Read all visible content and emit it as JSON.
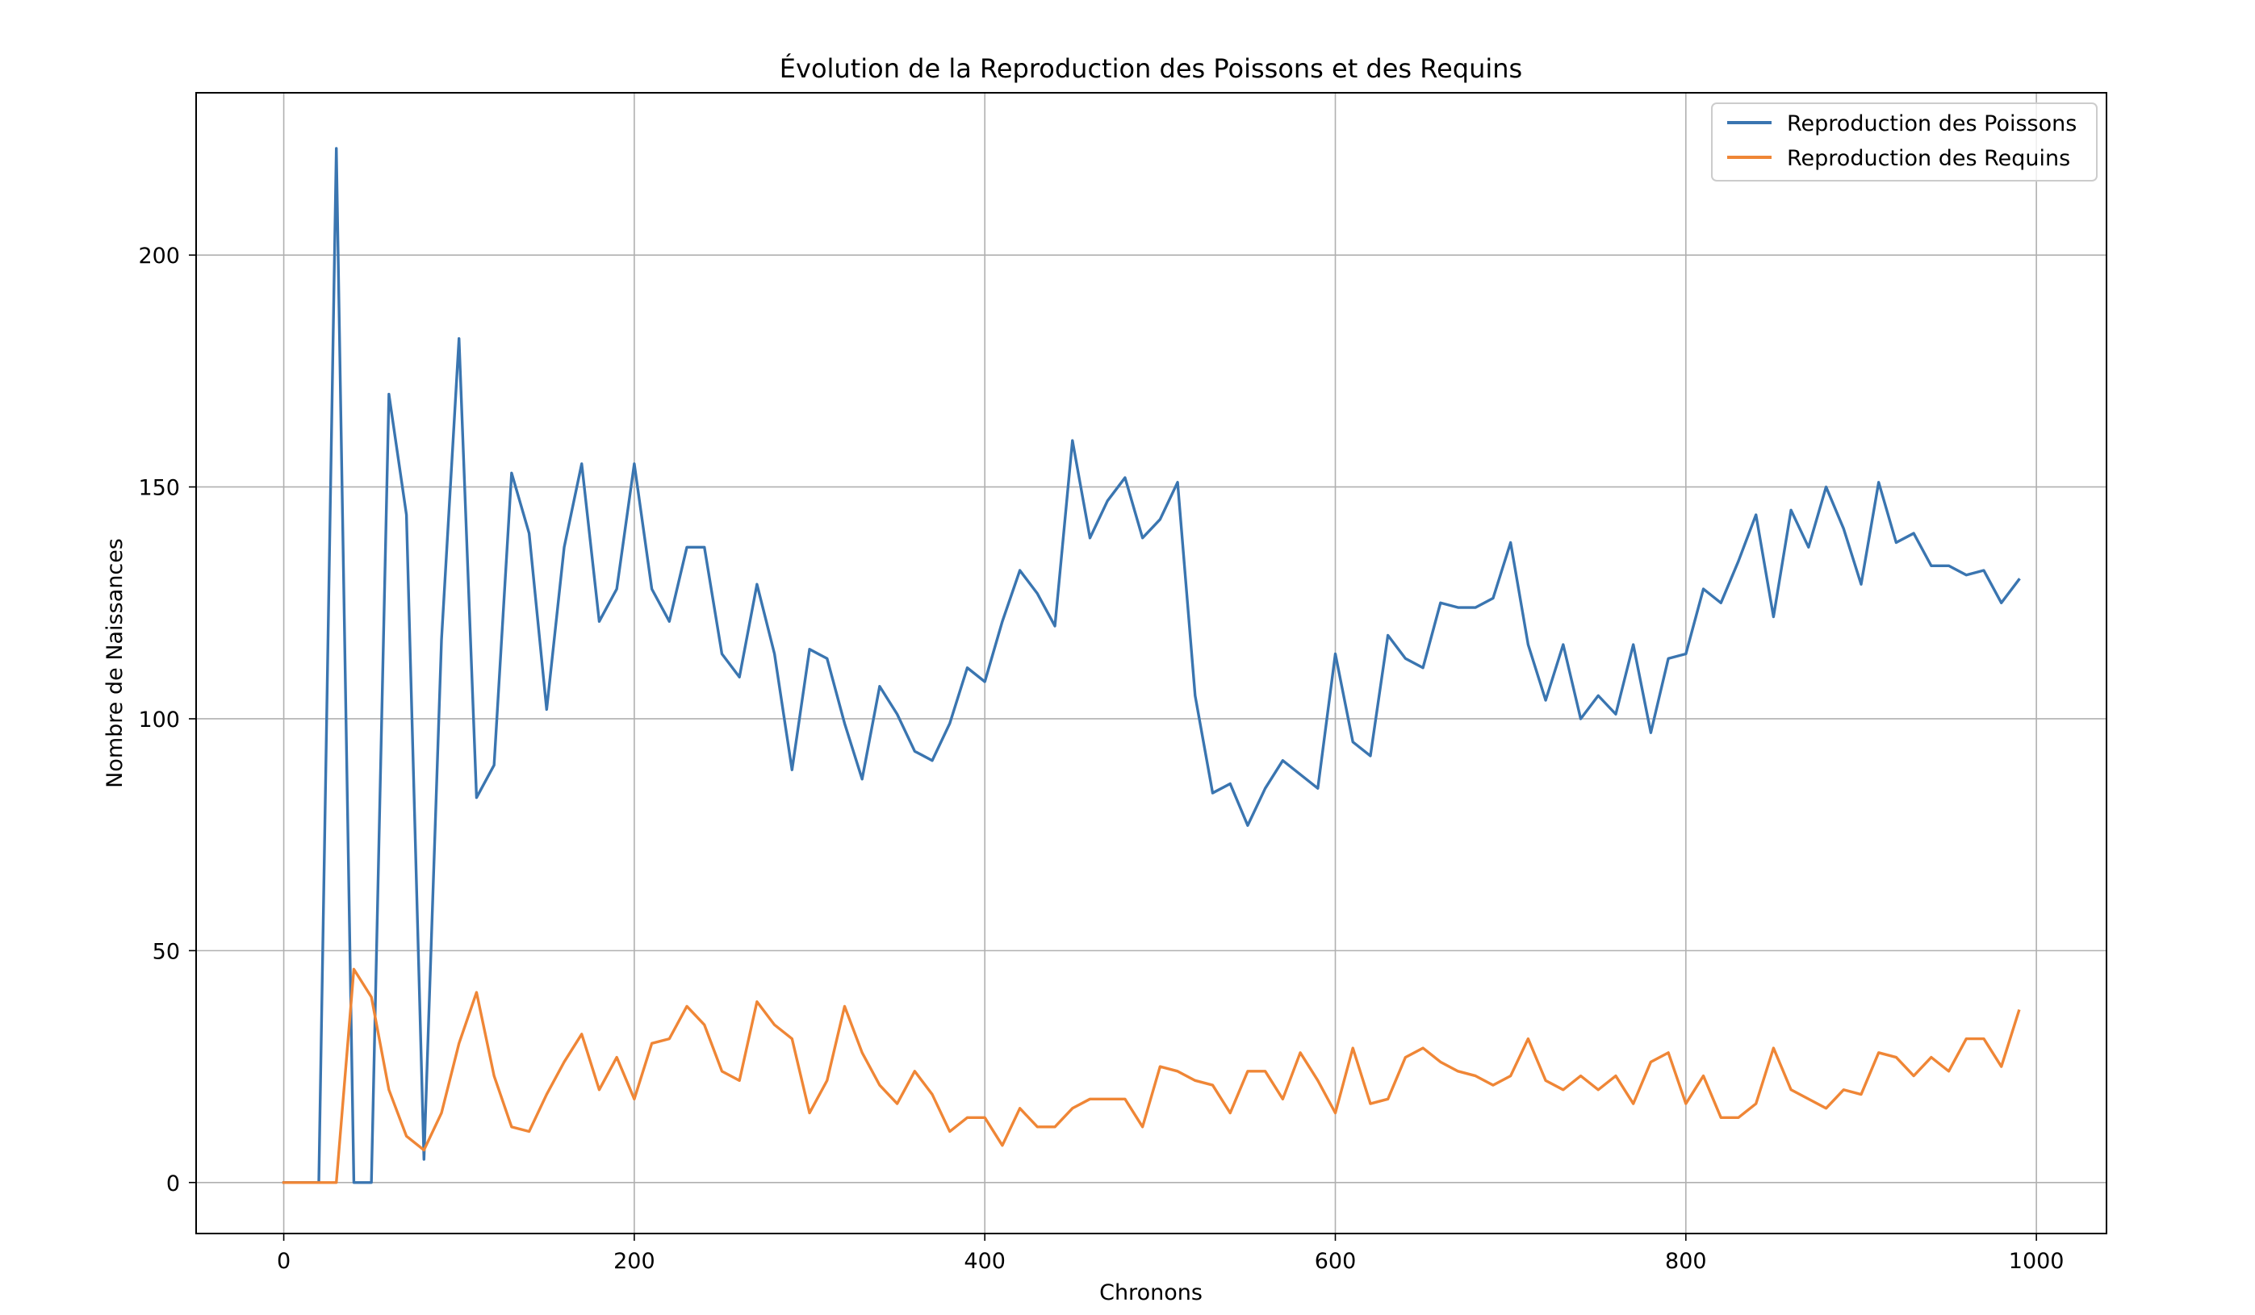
{
  "chart_data": {
    "type": "line",
    "title": "Évolution de la Reproduction des Poissons et des Requins",
    "xlabel": "Chronons",
    "ylabel": "Nombre de Naissances",
    "xlim": [
      -50,
      1040
    ],
    "ylim": [
      -11,
      235
    ],
    "xticks": [
      0,
      200,
      400,
      600,
      800,
      1000
    ],
    "xtick_labels": [
      "0",
      "200",
      "400",
      "600",
      "800",
      "1000"
    ],
    "yticks": [
      0,
      50,
      100,
      150,
      200
    ],
    "ytick_labels": [
      "0",
      "50",
      "100",
      "150",
      "200"
    ],
    "grid": true,
    "legend_position": "top-right",
    "x": [
      0,
      10,
      20,
      30,
      40,
      50,
      60,
      70,
      80,
      90,
      100,
      110,
      120,
      130,
      140,
      150,
      160,
      170,
      180,
      190,
      200,
      210,
      220,
      230,
      240,
      250,
      260,
      270,
      280,
      290,
      300,
      310,
      320,
      330,
      340,
      350,
      360,
      370,
      380,
      390,
      400,
      410,
      420,
      430,
      440,
      450,
      460,
      470,
      480,
      490,
      500,
      510,
      520,
      530,
      540,
      550,
      560,
      570,
      580,
      590,
      600,
      610,
      620,
      630,
      640,
      650,
      660,
      670,
      680,
      690,
      700,
      710,
      720,
      730,
      740,
      750,
      760,
      770,
      780,
      790,
      800,
      810,
      820,
      830,
      840,
      850,
      860,
      870,
      880,
      890,
      900,
      910,
      920,
      930,
      940,
      950,
      960,
      970,
      980,
      990
    ],
    "series": [
      {
        "name": "Reproduction des Poissons",
        "color": "#3a75b0",
        "values": [
          0,
          0,
          0,
          223,
          0,
          0,
          170,
          144,
          5,
          117,
          182,
          83,
          90,
          153,
          140,
          102,
          137,
          155,
          121,
          128,
          155,
          128,
          121,
          137,
          137,
          114,
          109,
          129,
          114,
          89,
          115,
          113,
          99,
          87,
          107,
          101,
          93,
          91,
          99,
          111,
          108,
          121,
          132,
          127,
          120,
          160,
          139,
          147,
          152,
          139,
          143,
          151,
          105,
          84,
          86,
          77,
          85,
          91,
          88,
          85,
          114,
          95,
          92,
          118,
          113,
          111,
          125,
          124,
          124,
          126,
          138,
          116,
          104,
          116,
          100,
          105,
          101,
          116,
          97,
          113,
          114,
          128,
          125,
          134,
          144,
          122,
          145,
          137,
          150,
          141,
          129,
          151,
          138,
          140,
          133,
          133,
          131,
          132,
          125,
          130
        ]
      },
      {
        "name": "Reproduction des Requins",
        "color": "#ef8636",
        "values": [
          0,
          0,
          0,
          0,
          46,
          40,
          20,
          10,
          7,
          15,
          30,
          41,
          23,
          12,
          11,
          19,
          26,
          32,
          20,
          27,
          18,
          30,
          31,
          38,
          34,
          24,
          22,
          39,
          34,
          31,
          15,
          22,
          38,
          28,
          21,
          17,
          24,
          19,
          11,
          14,
          14,
          8,
          16,
          12,
          12,
          16,
          18,
          18,
          18,
          12,
          25,
          24,
          22,
          21,
          15,
          24,
          24,
          18,
          28,
          22,
          15,
          29,
          17,
          18,
          27,
          29,
          26,
          24,
          23,
          21,
          23,
          31,
          22,
          20,
          23,
          20,
          23,
          17,
          26,
          28,
          17,
          23,
          14,
          14,
          17,
          29,
          20,
          18,
          16,
          20,
          19,
          28,
          27,
          23,
          27,
          24,
          31,
          31,
          25,
          37
        ]
      }
    ]
  }
}
